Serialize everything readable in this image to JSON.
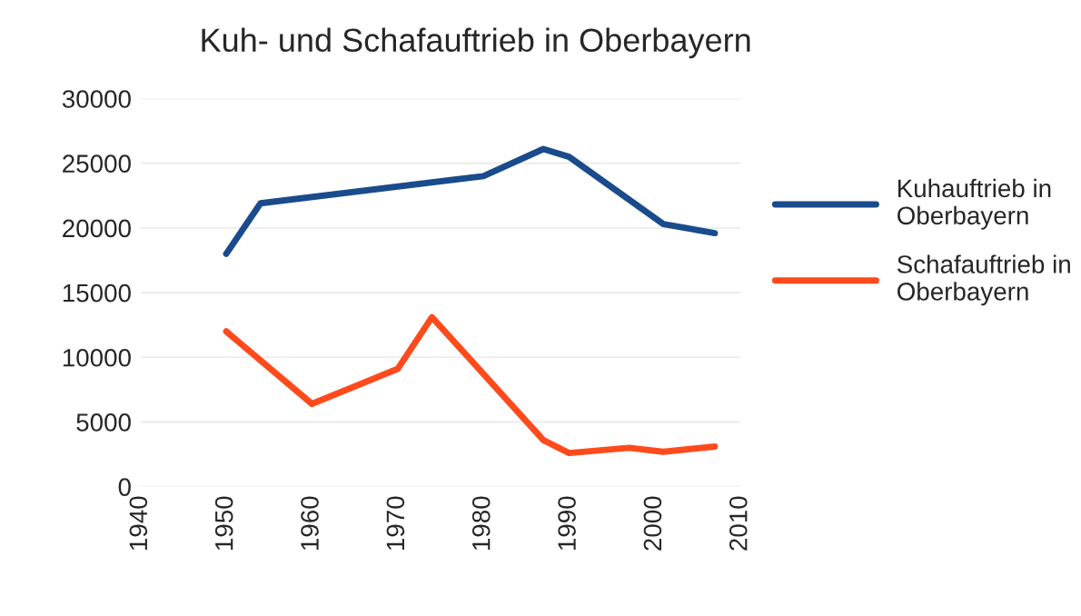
{
  "chart_data": {
    "type": "line",
    "title": "Kuh- und Schafauftrieb in Oberbayern",
    "series": [
      {
        "name": "Kuhauftrieb in Oberbayern",
        "color": "#1a4b8c",
        "x": [
          1950,
          1954,
          1980,
          1987,
          1990,
          2001,
          2007
        ],
        "values": [
          18000,
          21900,
          24000,
          26100,
          25500,
          20300,
          19600
        ]
      },
      {
        "name": "Schafauftrieb in Oberbayern",
        "color": "#ff4a1c",
        "x": [
          1950,
          1960,
          1970,
          1974,
          1987,
          1990,
          1997,
          2001,
          2007
        ],
        "values": [
          12000,
          6400,
          9100,
          13100,
          3600,
          2600,
          3000,
          2700,
          3100
        ]
      }
    ],
    "xlim": [
      1940,
      2010
    ],
    "xticks": [
      1940,
      1950,
      1960,
      1970,
      1980,
      1990,
      2000,
      2010
    ],
    "ylim": [
      0,
      30000
    ],
    "yticks": [
      {
        "value": 0,
        "label": "0"
      },
      {
        "value": 5000,
        "label": "5000"
      },
      {
        "value": 10000,
        "label": "10000"
      },
      {
        "value": 15000,
        "label": "15000"
      },
      {
        "value": 20000,
        "label": "20000"
      },
      {
        "value": 25000,
        "label": "25000"
      },
      {
        "value": 30000,
        "label": "30000"
      }
    ],
    "grid": "y",
    "legend": "right",
    "marker": "none",
    "line_style": "solid"
  }
}
